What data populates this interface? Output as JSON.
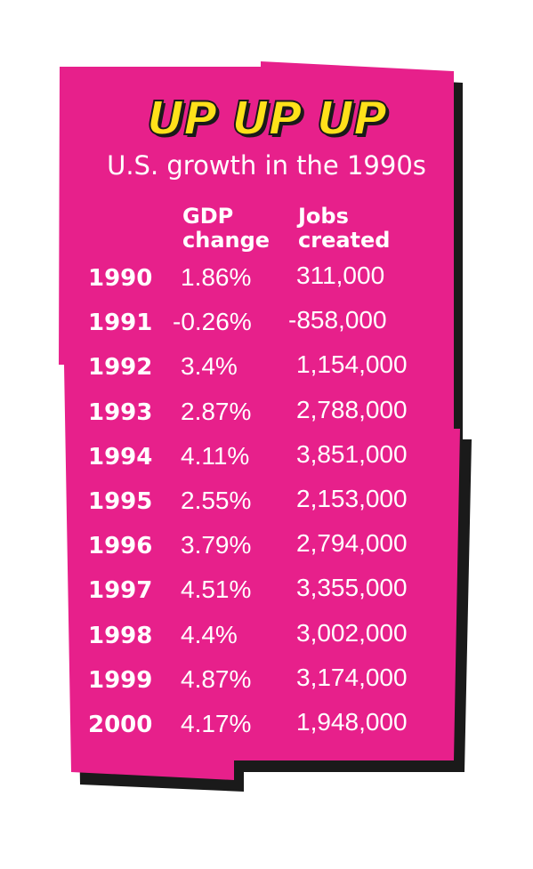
{
  "title": "UP UP UP",
  "subtitle": "U.S. growth in the 1990s",
  "colors": {
    "panel": "#e7208b",
    "shadow": "#1a1a1a",
    "title": "#ffe11a",
    "text": "#ffffff"
  },
  "chart_data": {
    "type": "table",
    "title": "UP UP UP",
    "subtitle": "U.S. growth in the 1990s",
    "columns": [
      {
        "key": "gdp",
        "label_lines": [
          "GDP",
          "change"
        ]
      },
      {
        "key": "jobs",
        "label_lines": [
          "Jobs",
          "created"
        ]
      }
    ],
    "rows": [
      {
        "year": "1990",
        "gdp": "1.86%",
        "jobs": "311,000"
      },
      {
        "year": "1991",
        "gdp": "-0.26%",
        "jobs": "-858,000"
      },
      {
        "year": "1992",
        "gdp": "3.4%",
        "jobs": "1,154,000"
      },
      {
        "year": "1993",
        "gdp": "2.87%",
        "jobs": "2,788,000"
      },
      {
        "year": "1994",
        "gdp": "4.11%",
        "jobs": "3,851,000"
      },
      {
        "year": "1995",
        "gdp": "2.55%",
        "jobs": "2,153,000"
      },
      {
        "year": "1996",
        "gdp": "3.79%",
        "jobs": "2,794,000"
      },
      {
        "year": "1997",
        "gdp": "4.51%",
        "jobs": "3,355,000"
      },
      {
        "year": "1998",
        "gdp": "4.4%",
        "jobs": "3,002,000"
      },
      {
        "year": "1999",
        "gdp": "4.87%",
        "jobs": "3,174,000"
      },
      {
        "year": "2000",
        "gdp": "4.17%",
        "jobs": "1,948,000"
      }
    ]
  }
}
